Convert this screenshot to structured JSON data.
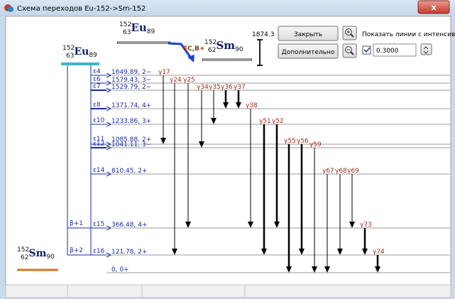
{
  "window": {
    "title": "Схема переходов  Eu-152->Sm-152",
    "close": "x"
  },
  "header": {
    "parent": {
      "mass": "152",
      "z": "63",
      "sym": "Eu",
      "n": "89"
    },
    "mode": "EC,B+",
    "daughter": {
      "mass": "152",
      "z": "62",
      "sym": "Sm",
      "n": "90"
    },
    "scale": "1874.3"
  },
  "controls": {
    "close_button": "Закрыть",
    "more_button": "Дополнительно",
    "show_label": "Показать линии с интенсивно",
    "threshold": "0.3000",
    "checked": true
  },
  "scheme": {
    "parent": {
      "mass": "152",
      "z": "63",
      "sym": "Eu",
      "n": "89"
    },
    "ground": {
      "mass": "152",
      "z": "62",
      "sym": "Sm",
      "n": "90"
    },
    "levels": [
      {
        "eps": "ε4",
        "label": "1649.89, 2−",
        "thick": false
      },
      {
        "eps": "ε6",
        "label": "1579.43, 3−",
        "thick": false
      },
      {
        "eps": "ε7",
        "label": "1529.79, 2−",
        "thick": true
      },
      {
        "eps": "ε8",
        "label": "1371.74, 4+",
        "thick": true
      },
      {
        "eps": "ε10",
        "label": "1233.86, 3+",
        "thick": false
      },
      {
        "eps": "ε11",
        "label": "1085.88, 2+",
        "thick": false
      },
      {
        "eps": "ε12",
        "label": "1041.11, 3−",
        "thick": true
      },
      {
        "eps": "ε14",
        "label": "810.45, 2+",
        "thick": false
      },
      {
        "eps": "ε15",
        "label": "366.48, 4+",
        "thick": false
      },
      {
        "eps": "ε16",
        "label": "121.78, 2+",
        "thick": false
      },
      {
        "label": "0, 0+"
      }
    ],
    "betas": [
      {
        "label": "β+1",
        "level": 8
      },
      {
        "label": "β+2",
        "level": 9
      }
    ],
    "gammas": [
      {
        "label": "γ17",
        "from": 0,
        "to": 5,
        "thick": false
      },
      {
        "label": "γ24",
        "from": 1,
        "to": 9,
        "thick": false
      },
      {
        "label": "γ25",
        "from": 1,
        "to": 8,
        "thick": false
      },
      {
        "label": "γ34",
        "from": 2,
        "to": 6,
        "thick": false
      },
      {
        "label": "γ35",
        "from": 2,
        "to": 4,
        "thick": false
      },
      {
        "label": "γ36",
        "from": 2,
        "to": 3,
        "thick": true
      },
      {
        "label": "γ37",
        "from": 2,
        "to": 3,
        "thick": true
      },
      {
        "label": "γ38",
        "from": 3,
        "to": 8,
        "thick": false
      },
      {
        "label": "γ51",
        "from": 4,
        "to": 9,
        "thick": true
      },
      {
        "label": "γ52",
        "from": 4,
        "to": 8,
        "thick": true
      },
      {
        "label": "γ55",
        "from": 5,
        "to": 10,
        "thick": true
      },
      {
        "label": "γ56",
        "from": 5,
        "to": 9,
        "thick": true
      },
      {
        "label": "γ59",
        "from": 6,
        "to": 10,
        "thick": false
      },
      {
        "label": "γ67",
        "from": 7,
        "to": 10,
        "thick": false
      },
      {
        "label": "γ68",
        "from": 7,
        "to": 9,
        "thick": false
      },
      {
        "label": "γ69",
        "from": 7,
        "to": 8,
        "thick": false
      },
      {
        "label": "γ73",
        "from": 8,
        "to": 9,
        "thick": true
      },
      {
        "label": "γ74",
        "from": 9,
        "to": 10,
        "thick": true
      }
    ]
  }
}
